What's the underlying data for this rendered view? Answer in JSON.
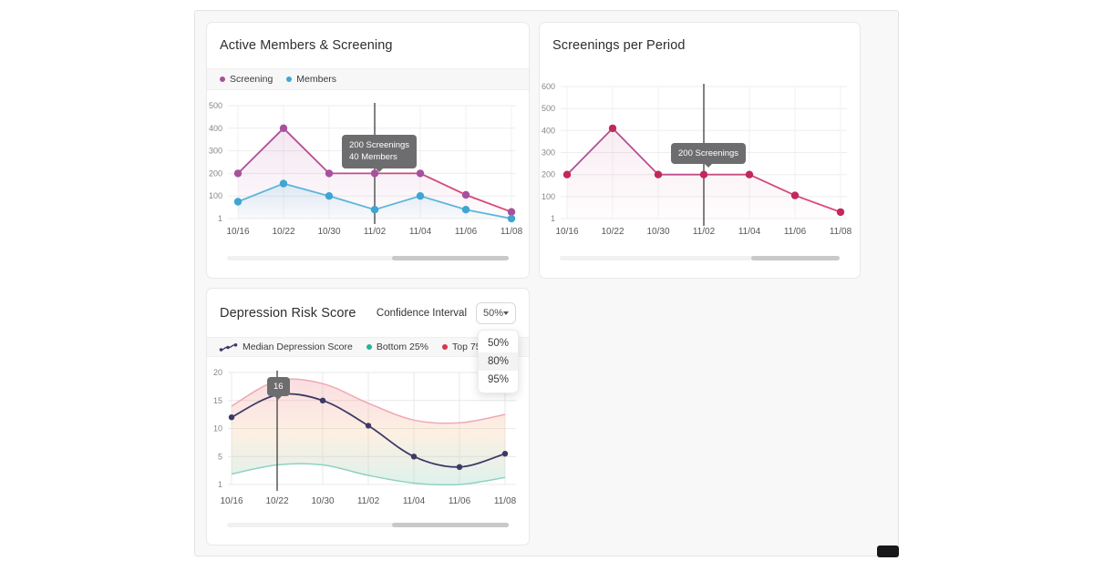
{
  "cards": {
    "active_members": {
      "title": "Active Members & Screening",
      "tooltip": {
        "category": "11/02",
        "lines": [
          "200 Screenings",
          "40 Members"
        ]
      }
    },
    "screenings": {
      "title": "Screenings per Period",
      "tooltip": {
        "category": "11/02",
        "lines": [
          "200 Screenings"
        ]
      }
    },
    "depression": {
      "title": "Depression Risk Score",
      "control_label": "Confidence Interval",
      "select": {
        "value": "50%",
        "options": [
          "50%",
          "80%",
          "95%"
        ],
        "highlighted_index": 1
      },
      "tooltip": {
        "category": "10/22",
        "lines": [
          "16"
        ]
      }
    }
  },
  "colors": {
    "screening": "#a8509d",
    "screening_line_end": "#e0486e",
    "members": "#41a7d3",
    "median": "#3d3a65",
    "bottom25": "#27b29a",
    "top75": "#d6364b",
    "ruler": "#4c4c4c",
    "tooltip_bg": "#6d6d6f"
  },
  "chart_data": [
    {
      "type": "line",
      "title": "Active Members & Screening",
      "categories": [
        "10/16",
        "10/22",
        "10/30",
        "11/02",
        "11/04",
        "11/06",
        "11/08"
      ],
      "y_ticks": [
        1,
        100,
        200,
        300,
        400,
        500
      ],
      "ylim": [
        1,
        500
      ],
      "grid": true,
      "legend_position": "top-strip",
      "ruler_category": "11/02",
      "series": [
        {
          "name": "Screening",
          "values": [
            200,
            400,
            200,
            200,
            200,
            105,
            30
          ],
          "dot_color": "#a8509d",
          "line_gradient": [
            "#a8509d",
            "#e0486e"
          ],
          "fill_gradient": [
            "rgba(176,80,157,0.14)",
            "rgba(176,80,157,0.02)"
          ]
        },
        {
          "name": "Members",
          "values": [
            75,
            155,
            100,
            40,
            100,
            40,
            1
          ],
          "dot_color": "#3fa5d2",
          "line_color": "#5cb6da",
          "fill_gradient": [
            "rgba(92,182,218,0.18)",
            "rgba(92,182,218,0.03)"
          ]
        }
      ]
    },
    {
      "type": "line",
      "title": "Screenings per Period",
      "categories": [
        "10/16",
        "10/22",
        "10/30",
        "11/02",
        "11/04",
        "11/06",
        "11/08"
      ],
      "y_ticks": [
        1,
        100,
        200,
        300,
        400,
        500,
        600
      ],
      "ylim": [
        1,
        600
      ],
      "grid": true,
      "ruler_category": "11/02",
      "series": [
        {
          "name": "Screenings",
          "values": [
            200,
            410,
            200,
            200,
            200,
            105,
            30
          ],
          "dot_color": "#c2285a",
          "line_gradient": [
            "#a8509d",
            "#e0486e"
          ],
          "fill_gradient": [
            "rgba(190,80,140,0.11)",
            "rgba(190,80,140,0.01)"
          ]
        }
      ]
    },
    {
      "type": "line",
      "title": "Depression Risk Score",
      "categories": [
        "10/16",
        "10/22",
        "10/30",
        "11/02",
        "11/04",
        "11/06",
        "11/08"
      ],
      "y_ticks": [
        1,
        5,
        10,
        15,
        20
      ],
      "ylim": [
        1,
        20
      ],
      "grid": true,
      "smooth": true,
      "legend_position": "top-strip",
      "ruler_category": "10/22",
      "band": {
        "upper_series": "Top 75%",
        "lower_series": "Bottom 25%",
        "fill_gradient": [
          "rgba(238,128,142,0.26)",
          "rgba(248,204,158,0.30)",
          "rgba(148,210,194,0.30)"
        ]
      },
      "series": [
        {
          "name": "Median Depression Score",
          "role": "median",
          "values": [
            12,
            16,
            15,
            10.5,
            5,
            3.5,
            5.5
          ],
          "dot_color": "#3d3a65",
          "line_color": "#3d3a65"
        },
        {
          "name": "Top 75%",
          "role": "upper",
          "values": [
            14,
            18.5,
            18,
            14.5,
            11.5,
            11,
            12.5
          ],
          "line_color": "#efa9b4"
        },
        {
          "name": "Bottom 25%",
          "role": "lower",
          "values": [
            2.5,
            3.8,
            3.8,
            2.3,
            1.2,
            1,
            2
          ],
          "line_color": "#8fd2c4"
        }
      ]
    }
  ]
}
